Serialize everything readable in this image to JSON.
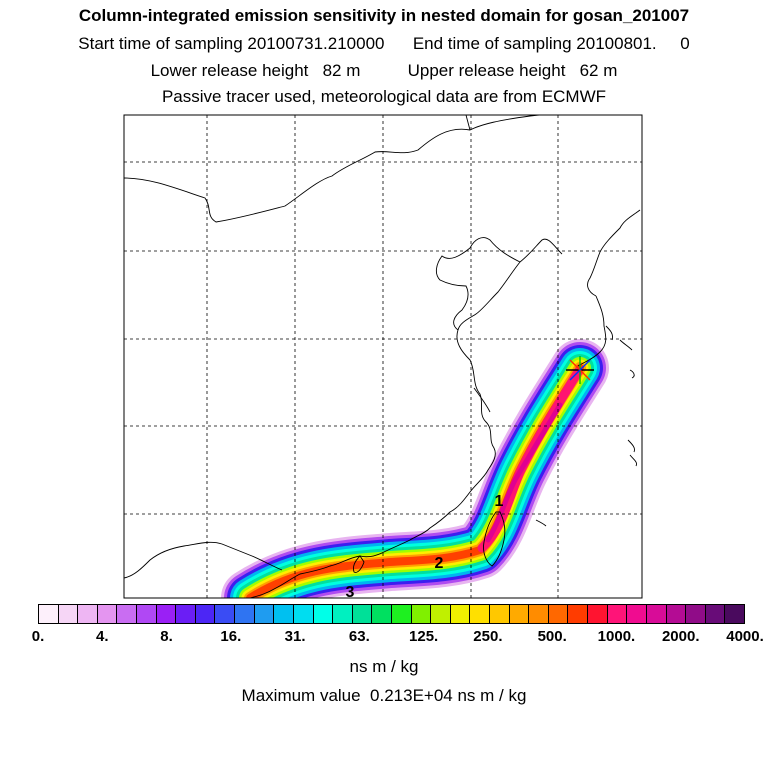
{
  "header": {
    "title": "Column-integrated emission sensitivity in nested domain for gosan_201007",
    "start_label": "Start time of sampling 20100731.210000",
    "end_label": "End time of sampling 20100801.     0",
    "lower_label": "Lower release height   82 m",
    "upper_label": "Upper release height   62 m",
    "tracer_label": "Passive tracer used, meteorological data are from ECMWF"
  },
  "map": {
    "markers": [
      "1",
      "2",
      "3"
    ],
    "release_site_icon": "star-marker-icon",
    "plume_colors": [
      "#e8b4f0",
      "#b04cf0",
      "#3c1ef0",
      "#00b4f0",
      "#00ffe0",
      "#00e0a0",
      "#a0ff00",
      "#ffee00",
      "#ffa000",
      "#ff4000",
      "#ff1470",
      "#e00090"
    ]
  },
  "colorbar": {
    "colors": [
      "#fdf0fb",
      "#f6d6f6",
      "#eeb6f3",
      "#e495f0",
      "#c96df2",
      "#b048f4",
      "#9a20f5",
      "#6b1ef5",
      "#4c26f5",
      "#3a4cf4",
      "#2f74f2",
      "#1f9cf0",
      "#00c0f0",
      "#00ddf0",
      "#00ffe8",
      "#00f0c0",
      "#00e098",
      "#00e060",
      "#1ef020",
      "#80f000",
      "#c0f000",
      "#f0f000",
      "#ffe000",
      "#ffc800",
      "#ffaa00",
      "#ff8c00",
      "#ff6800",
      "#ff3c00",
      "#ff1430",
      "#ff1478",
      "#f00c90",
      "#d80c98",
      "#b40c94",
      "#900c88",
      "#680c78",
      "#4a0a5e"
    ],
    "ticks": [
      "0.",
      "4.",
      "8.",
      "16.",
      "31.",
      "63.",
      "125.",
      "250.",
      "500.",
      "1000.",
      "2000.",
      "4000."
    ],
    "units": "ns m / kg",
    "max_value": "Maximum value  0.213E+04 ns m / kg"
  }
}
